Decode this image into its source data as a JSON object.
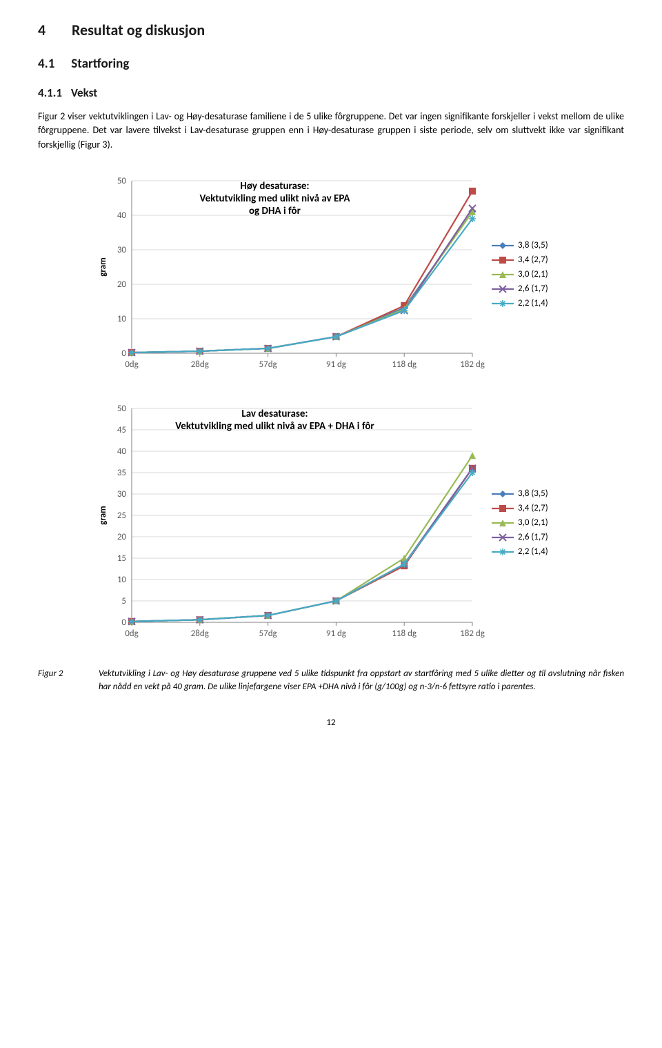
{
  "headings": {
    "h1_num": "4",
    "h1_text": "Resultat og diskusjon",
    "h2_num": "4.1",
    "h2_text": "Startforing",
    "h3_num": "4.1.1",
    "h3_text": "Vekst"
  },
  "paragraph": "Figur 2 viser vektutviklingen i Lav- og Høy-desaturase familiene i de 5 ulike fôrgruppene. Det var ingen signifikante forskjeller i vekst mellom de ulike fôrgruppene. Det var lavere tilvekst i Lav-desaturase gruppen enn i Høy-desaturase gruppen i siste periode, selv om sluttvekt ikke var signifikant forskjellig (Figur 3).",
  "chart1": {
    "type": "line",
    "title": "Høy desaturase:\nVektutvikling med ulikt nivå av EPA\nog DHA i fôr",
    "ylabel": "gram",
    "categories": [
      "0dg",
      "28dg",
      "57dg",
      "91 dg",
      "118 dg",
      "182 dg"
    ],
    "ylim": [
      0,
      50
    ],
    "ytick_step": 10,
    "grid_color": "#d9d9d9",
    "axis_color": "#808080",
    "background_color": "#ffffff",
    "series": [
      {
        "name": "3,8 (3,5)",
        "color": "#4a7ebb",
        "marker": "diamond",
        "values": [
          0.2,
          0.6,
          1.4,
          4.8,
          13.2,
          41
        ]
      },
      {
        "name": "3,4 (2,7)",
        "color": "#be4b48",
        "marker": "square",
        "values": [
          0.2,
          0.6,
          1.4,
          4.8,
          13.8,
          47
        ]
      },
      {
        "name": "3,0 (2,1)",
        "color": "#98b954",
        "marker": "triangle",
        "values": [
          0.2,
          0.6,
          1.4,
          4.8,
          12.8,
          41
        ]
      },
      {
        "name": "2,6 (1,7)",
        "color": "#7d60a0",
        "marker": "x",
        "values": [
          0.2,
          0.6,
          1.4,
          4.8,
          12.4,
          42
        ]
      },
      {
        "name": "2,2 (1,4)",
        "color": "#46aac5",
        "marker": "star",
        "values": [
          0.2,
          0.6,
          1.4,
          4.8,
          12.4,
          39
        ]
      }
    ]
  },
  "chart2": {
    "type": "line",
    "title": "Lav desaturase:\nVektutvikling med ulikt nivå av EPA + DHA i fôr",
    "ylabel": "gram",
    "categories": [
      "0dg",
      "28dg",
      "57dg",
      "91 dg",
      "118 dg",
      "182 dg"
    ],
    "ylim": [
      0,
      50
    ],
    "ytick_step": 5,
    "grid_color": "#d9d9d9",
    "axis_color": "#808080",
    "background_color": "#ffffff",
    "series": [
      {
        "name": "3,8 (3,5)",
        "color": "#4a7ebb",
        "marker": "diamond",
        "values": [
          0.2,
          0.6,
          1.6,
          5.0,
          13.6,
          36
        ]
      },
      {
        "name": "3,4 (2,7)",
        "color": "#be4b48",
        "marker": "square",
        "values": [
          0.2,
          0.6,
          1.6,
          5.0,
          13.2,
          36
        ]
      },
      {
        "name": "3,0 (2,1)",
        "color": "#98b954",
        "marker": "triangle",
        "values": [
          0.2,
          0.6,
          1.6,
          5.0,
          15.0,
          39
        ]
      },
      {
        "name": "2,6 (1,7)",
        "color": "#7d60a0",
        "marker": "x",
        "values": [
          0.2,
          0.6,
          1.6,
          5.0,
          13.6,
          36
        ]
      },
      {
        "name": "2,2 (1,4)",
        "color": "#46aac5",
        "marker": "star",
        "values": [
          0.2,
          0.6,
          1.6,
          5.0,
          13.6,
          35
        ]
      }
    ]
  },
  "figure_caption": {
    "label": "Figur 2",
    "text": "Vektutvikling i Lav- og Høy desaturase gruppene ved 5 ulike tidspunkt fra oppstart av startfôring med 5 ulike dietter og til avslutning når fisken har nådd en vekt på 40 gram. De ulike linjefargene viser EPA +DHA nivå i fôr (g/100g) og n-3/n-6 fettsyre ratio i parentes."
  },
  "page_number": "12"
}
